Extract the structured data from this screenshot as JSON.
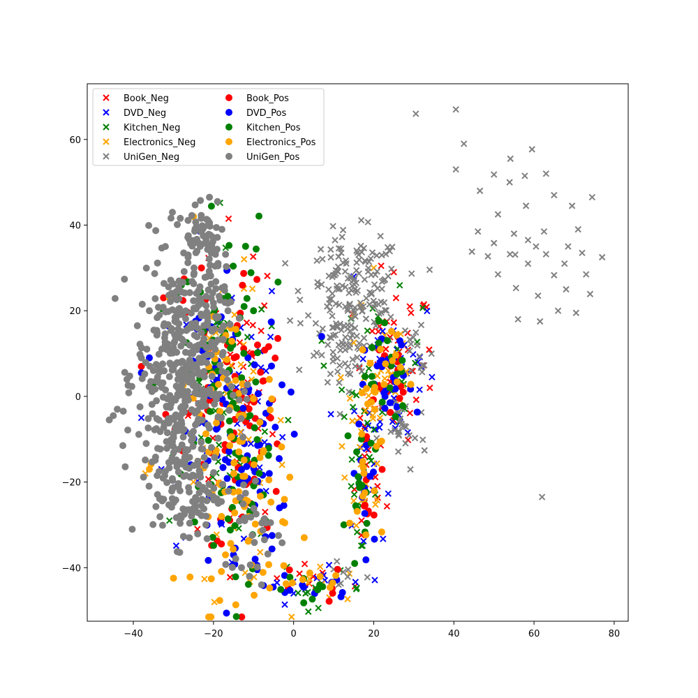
{
  "chart_data": {
    "type": "scatter",
    "title": "",
    "xlabel": "",
    "ylabel": "",
    "xlim": [
      -51.5,
      83.5
    ],
    "ylim": [
      -52.5,
      73
    ],
    "xticks": [
      -40,
      -20,
      0,
      20,
      40,
      60,
      80
    ],
    "yticks": [
      -40,
      -20,
      0,
      20,
      40,
      60
    ],
    "grid": false,
    "legend": {
      "placement": "top-left",
      "columns": 2
    },
    "series": [
      {
        "name": "Book_Neg",
        "color": "#ff0000",
        "marker": "x",
        "clusters": [
          {
            "cx": -14,
            "cy": 5,
            "sx": 6,
            "sy": 18,
            "n": 40
          },
          {
            "cx": 25,
            "cy": 8,
            "sx": 5,
            "sy": 9,
            "n": 35
          },
          {
            "cx": 18,
            "cy": -20,
            "sx": 2.5,
            "sy": 10,
            "n": 15
          },
          {
            "cx": 8,
            "cy": -43,
            "sx": 7,
            "sy": 2,
            "n": 8
          }
        ],
        "points": [
          [
            29,
            21
          ],
          [
            25,
            29
          ],
          [
            34,
            2
          ],
          [
            -8,
            -13
          ],
          [
            -24,
            -31
          ]
        ]
      },
      {
        "name": "DVD_Neg",
        "color": "#0000ff",
        "marker": "x",
        "clusters": [
          {
            "cx": -16,
            "cy": -5,
            "sx": 7,
            "sy": 20,
            "n": 40
          },
          {
            "cx": 26,
            "cy": 5,
            "sx": 5,
            "sy": 10,
            "n": 35
          },
          {
            "cx": 18,
            "cy": -18,
            "sx": 2.5,
            "sy": 12,
            "n": 15
          },
          {
            "cx": 4,
            "cy": -44,
            "sx": 6,
            "sy": 2,
            "n": 8
          }
        ],
        "points": [
          [
            15,
            28
          ],
          [
            31,
            8
          ],
          [
            -38,
            -5
          ],
          [
            -33,
            -17
          ],
          [
            0,
            -46
          ]
        ]
      },
      {
        "name": "Kitchen_Neg",
        "color": "#008000",
        "marker": "x",
        "clusters": [
          {
            "cx": -18,
            "cy": 0,
            "sx": 6,
            "sy": 20,
            "n": 40
          },
          {
            "cx": 22,
            "cy": 5,
            "sx": 5,
            "sy": 9,
            "n": 30
          },
          {
            "cx": 17,
            "cy": -20,
            "sx": 2.5,
            "sy": 12,
            "n": 15
          },
          {
            "cx": 6,
            "cy": -45,
            "sx": 6,
            "sy": 2,
            "n": 8
          }
        ],
        "points": [
          [
            -31,
            -29
          ],
          [
            7,
            13
          ],
          [
            3,
            -46
          ],
          [
            -33,
            20
          ]
        ]
      },
      {
        "name": "Electronics_Neg",
        "color": "#ffa500",
        "marker": "x",
        "clusters": [
          {
            "cx": -14,
            "cy": -10,
            "sx": 6,
            "sy": 18,
            "n": 40
          },
          {
            "cx": 22,
            "cy": 5,
            "sx": 5,
            "sy": 9,
            "n": 30
          },
          {
            "cx": 18,
            "cy": -18,
            "sx": 2.5,
            "sy": 12,
            "n": 15
          },
          {
            "cx": 8,
            "cy": -44,
            "sx": 6,
            "sy": 2,
            "n": 8
          }
        ],
        "points": [
          [
            -37,
            -18
          ],
          [
            15,
            19
          ],
          [
            20,
            30
          ],
          [
            -25,
            -20
          ]
        ]
      },
      {
        "name": "UniGen_Neg",
        "color": "#808080",
        "marker": "x",
        "clusters": [
          {
            "cx": 15,
            "cy": 24,
            "sx": 6,
            "sy": 7,
            "n": 170
          },
          {
            "cx": 12,
            "cy": 10,
            "sx": 3,
            "sy": 4,
            "n": 40
          },
          {
            "cx": 27,
            "cy": -8,
            "sx": 3,
            "sy": 5,
            "n": 30
          },
          {
            "cx": 31,
            "cy": 10,
            "sx": 2,
            "sy": 5,
            "n": 15
          },
          {
            "cx": 12,
            "cy": -41,
            "sx": 3,
            "sy": 2,
            "n": 8
          }
        ],
        "points": [
          [
            30.5,
            66
          ],
          [
            40.5,
            67
          ],
          [
            42.5,
            59
          ],
          [
            40.5,
            53
          ],
          [
            46.5,
            48
          ],
          [
            50,
            51.8
          ],
          [
            54.1,
            55.5
          ],
          [
            59.5,
            57.7
          ],
          [
            57.7,
            51.5
          ],
          [
            53.9,
            50
          ],
          [
            63,
            52
          ],
          [
            65,
            47
          ],
          [
            74.5,
            46.5
          ],
          [
            69.5,
            44.5
          ],
          [
            58,
            44.5
          ],
          [
            51,
            42.5
          ],
          [
            46,
            38.5
          ],
          [
            55,
            38
          ],
          [
            62.5,
            38.5
          ],
          [
            71,
            39
          ],
          [
            58.5,
            36.5
          ],
          [
            60.5,
            35
          ],
          [
            50,
            35.8
          ],
          [
            44.5,
            33.8
          ],
          [
            48.5,
            32.7
          ],
          [
            54,
            33.2
          ],
          [
            55.3,
            33.1
          ],
          [
            63,
            33.2
          ],
          [
            68.5,
            35
          ],
          [
            72,
            33.5
          ],
          [
            77,
            32.5
          ],
          [
            67.6,
            31
          ],
          [
            58.5,
            31
          ],
          [
            65,
            28.3
          ],
          [
            73,
            28.5
          ],
          [
            51,
            28.5
          ],
          [
            55.5,
            25.3
          ],
          [
            68,
            25
          ],
          [
            74,
            23.9
          ],
          [
            61,
            23.5
          ],
          [
            66,
            20
          ],
          [
            70.5,
            19.5
          ],
          [
            56,
            18
          ],
          [
            61.5,
            17.5
          ],
          [
            62,
            -23.5
          ]
        ]
      },
      {
        "name": "Book_Pos",
        "color": "#ff0000",
        "marker": "o",
        "clusters": [
          {
            "cx": -12,
            "cy": -5,
            "sx": 5,
            "sy": 18,
            "n": 60
          },
          {
            "cx": -22,
            "cy": 10,
            "sx": 4,
            "sy": 12,
            "n": 25
          },
          {
            "cx": 23,
            "cy": 3,
            "sx": 3,
            "sy": 6,
            "n": 20
          },
          {
            "cx": 18,
            "cy": -20,
            "sx": 2,
            "sy": 8,
            "n": 10
          },
          {
            "cx": 3,
            "cy": -44,
            "sx": 5,
            "sy": 2,
            "n": 6
          }
        ],
        "points": [
          [
            -9,
            12
          ],
          [
            -23,
            30
          ],
          [
            -38,
            7
          ],
          [
            -8,
            -13
          ]
        ]
      },
      {
        "name": "DVD_Pos",
        "color": "#0000ff",
        "marker": "o",
        "clusters": [
          {
            "cx": -14,
            "cy": -15,
            "sx": 6,
            "sy": 16,
            "n": 80
          },
          {
            "cx": -20,
            "cy": 8,
            "sx": 4,
            "sy": 10,
            "n": 20
          },
          {
            "cx": 24,
            "cy": 2,
            "sx": 3,
            "sy": 6,
            "n": 25
          },
          {
            "cx": 18,
            "cy": -22,
            "sx": 2,
            "sy": 10,
            "n": 15
          },
          {
            "cx": 4,
            "cy": -44,
            "sx": 6,
            "sy": 2,
            "n": 10
          }
        ],
        "points": [
          [
            -38,
            5.5
          ],
          [
            -36,
            9
          ],
          [
            -29,
            -21
          ],
          [
            7,
            14
          ],
          [
            -15,
            -37
          ]
        ]
      },
      {
        "name": "Kitchen_Pos",
        "color": "#008000",
        "marker": "o",
        "clusters": [
          {
            "cx": -17,
            "cy": 5,
            "sx": 5,
            "sy": 18,
            "n": 70
          },
          {
            "cx": -12,
            "cy": -20,
            "sx": 5,
            "sy": 10,
            "n": 25
          },
          {
            "cx": 22,
            "cy": 6,
            "sx": 3,
            "sy": 7,
            "n": 20
          },
          {
            "cx": 17,
            "cy": -25,
            "sx": 2,
            "sy": 10,
            "n": 15
          },
          {
            "cx": 5,
            "cy": -45,
            "sx": 5,
            "sy": 2,
            "n": 8
          }
        ],
        "points": [
          [
            -28,
            26
          ],
          [
            -35,
            3
          ],
          [
            -7,
            -29
          ],
          [
            -10,
            20
          ]
        ]
      },
      {
        "name": "Electronics_Pos",
        "color": "#ffa500",
        "marker": "o",
        "clusters": [
          {
            "cx": -13,
            "cy": -18,
            "sx": 6,
            "sy": 14,
            "n": 85
          },
          {
            "cx": -18,
            "cy": 5,
            "sx": 4,
            "sy": 10,
            "n": 15
          },
          {
            "cx": 21,
            "cy": 5,
            "sx": 3,
            "sy": 7,
            "n": 20
          },
          {
            "cx": 18,
            "cy": -15,
            "sx": 2,
            "sy": 12,
            "n": 15
          },
          {
            "cx": 3,
            "cy": -44,
            "sx": 5,
            "sy": 2,
            "n": 10
          }
        ],
        "points": [
          [
            -25,
            42
          ],
          [
            -31,
            23
          ],
          [
            -36,
            -17
          ],
          [
            -17,
            -37
          ]
        ]
      },
      {
        "name": "UniGen_Pos",
        "color": "#808080",
        "marker": "o",
        "clusters": [
          {
            "cx": -28,
            "cy": 5,
            "sx": 5.5,
            "sy": 14,
            "n": 420
          },
          {
            "cx": -27,
            "cy": -22,
            "sx": 4,
            "sy": 6,
            "n": 90
          },
          {
            "cx": -23,
            "cy": 38,
            "sx": 3,
            "sy": 4,
            "n": 50
          },
          {
            "cx": -20,
            "cy": 20,
            "sx": 3,
            "sy": 8,
            "n": 40
          },
          {
            "cx": -10,
            "cy": -30,
            "sx": 4,
            "sy": 6,
            "n": 30
          }
        ],
        "points": [
          [
            -46,
            -5.5
          ],
          [
            -45,
            -4.5
          ],
          [
            -44,
            -3
          ],
          [
            -21,
            46.5
          ],
          [
            -19,
            45.5
          ],
          [
            -39,
            16.5
          ],
          [
            -38,
            9
          ],
          [
            -36,
            20
          ],
          [
            -32,
            35
          ],
          [
            -26,
            -33
          ],
          [
            -13,
            -40
          ],
          [
            -11,
            -42
          ],
          [
            -8,
            -44
          ]
        ]
      }
    ]
  }
}
